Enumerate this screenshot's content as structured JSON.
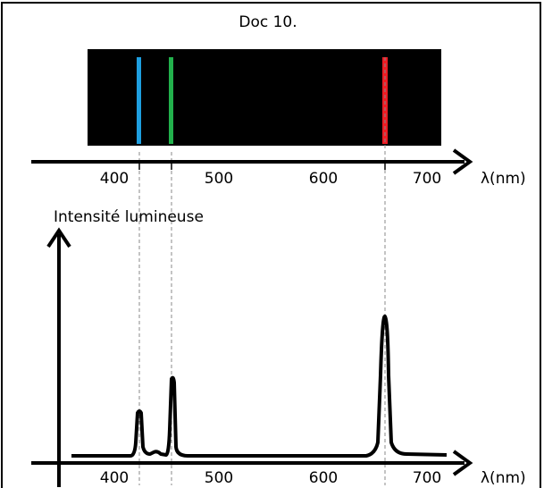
{
  "title": "Doc 10.",
  "spectrum_axis": {
    "ticks": [
      400,
      500,
      600,
      700
    ],
    "unit": "λ(nm)"
  },
  "intensity_graph": {
    "y_label": "Intensité lumineuse",
    "ticks": [
      400,
      500,
      600,
      700
    ],
    "unit": "λ(nm)"
  }
}
